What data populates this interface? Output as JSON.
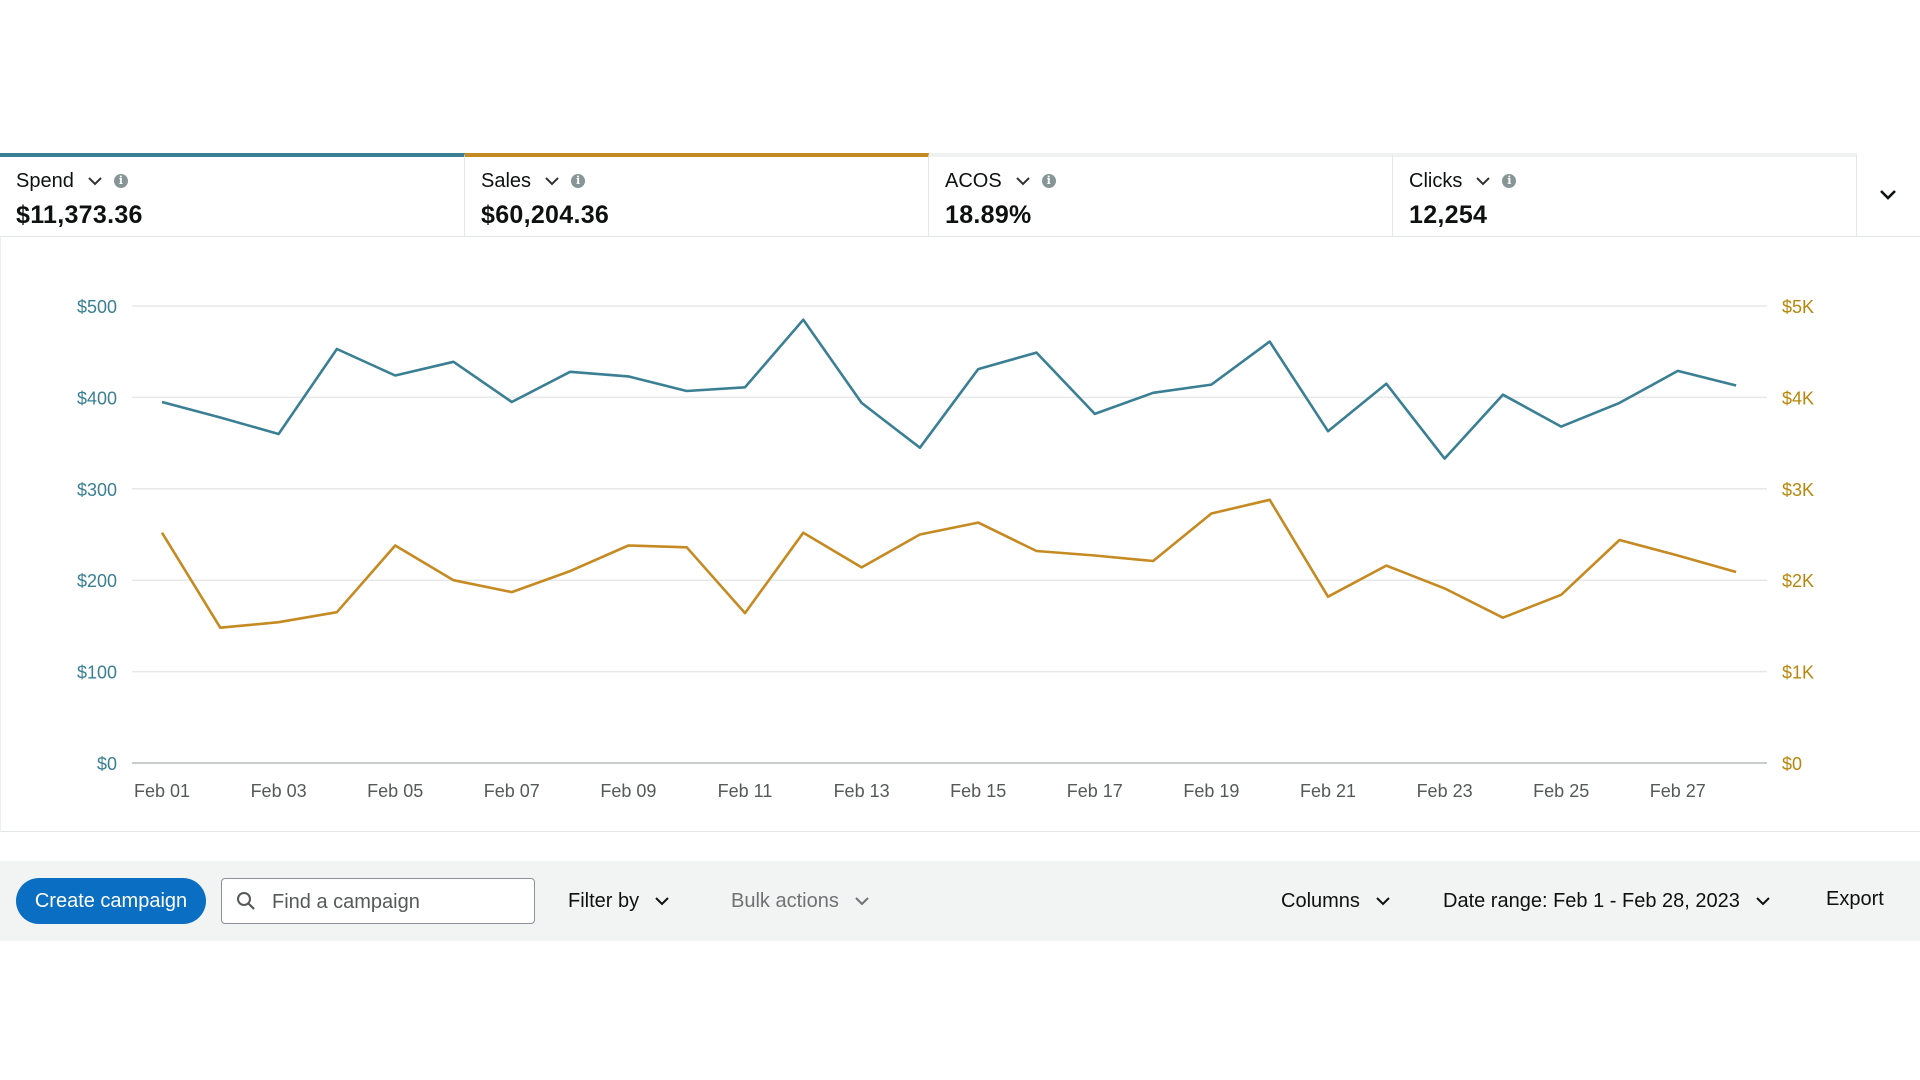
{
  "metrics": [
    {
      "id": "spend",
      "label": "Spend",
      "value": "$11,373.36",
      "color": "#3a7f93"
    },
    {
      "id": "sales",
      "label": "Sales",
      "value": "$60,204.36",
      "color": "#c58a22"
    },
    {
      "id": "acos",
      "label": "ACOS",
      "value": "18.89%"
    },
    {
      "id": "clicks",
      "label": "Clicks",
      "value": "12,254"
    }
  ],
  "icons": {
    "info": "info-icon",
    "chevron": "chevron-down-icon",
    "search": "search-icon",
    "info_glyph": "i"
  },
  "chart_data": {
    "type": "line",
    "x_tick_labels": [
      "Feb 01",
      "Feb 03",
      "Feb 05",
      "Feb 07",
      "Feb 09",
      "Feb 11",
      "Feb 13",
      "Feb 15",
      "Feb 17",
      "Feb 19",
      "Feb 21",
      "Feb 23",
      "Feb 25",
      "Feb 27"
    ],
    "x": [
      "Feb 01",
      "Feb 02",
      "Feb 03",
      "Feb 04",
      "Feb 05",
      "Feb 06",
      "Feb 07",
      "Feb 08",
      "Feb 09",
      "Feb 10",
      "Feb 11",
      "Feb 12",
      "Feb 13",
      "Feb 14",
      "Feb 15",
      "Feb 16",
      "Feb 17",
      "Feb 18",
      "Feb 19",
      "Feb 20",
      "Feb 21",
      "Feb 22",
      "Feb 23",
      "Feb 24",
      "Feb 25",
      "Feb 26",
      "Feb 27",
      "Feb 28"
    ],
    "series": [
      {
        "name": "Spend",
        "axis": "left",
        "color": "#3a7f93",
        "values": [
          395,
          378,
          360,
          453,
          424,
          439,
          395,
          428,
          423,
          407,
          411,
          485,
          394,
          345,
          431,
          449,
          382,
          405,
          414,
          461,
          363,
          415,
          333,
          403,
          368,
          394,
          429,
          413
        ]
      },
      {
        "name": "Sales",
        "axis": "right",
        "color": "#c58a22",
        "values": [
          2520,
          1480,
          1540,
          1650,
          2380,
          2000,
          1870,
          2100,
          2380,
          2360,
          1640,
          2520,
          2140,
          2500,
          2630,
          2320,
          2270,
          2210,
          2730,
          2880,
          1820,
          2160,
          1910,
          1590,
          1840,
          2440,
          2270,
          2090
        ]
      }
    ],
    "y_left": {
      "min": 0,
      "max": 500,
      "ticks": [
        0,
        100,
        200,
        300,
        400,
        500
      ],
      "tick_labels": [
        "$0",
        "$100",
        "$200",
        "$300",
        "$400",
        "$500"
      ],
      "color": "#3a7f93"
    },
    "y_right": {
      "min": 0,
      "max": 5000,
      "ticks": [
        0,
        1000,
        2000,
        3000,
        4000,
        5000
      ],
      "tick_labels": [
        "$0",
        "$1K",
        "$2K",
        "$3K",
        "$4K",
        "$5K"
      ],
      "color": "#b8860b"
    },
    "grid": true,
    "title": "",
    "xlabel": "",
    "ylabel": ""
  },
  "toolbar": {
    "create_label": "Create campaign",
    "search_placeholder": "Find a campaign",
    "filter_label": "Filter by",
    "bulk_label": "Bulk actions",
    "columns_label": "Columns",
    "daterange_label": "Date range: Feb 1 - Feb 28, 2023",
    "export_label": "Export"
  }
}
